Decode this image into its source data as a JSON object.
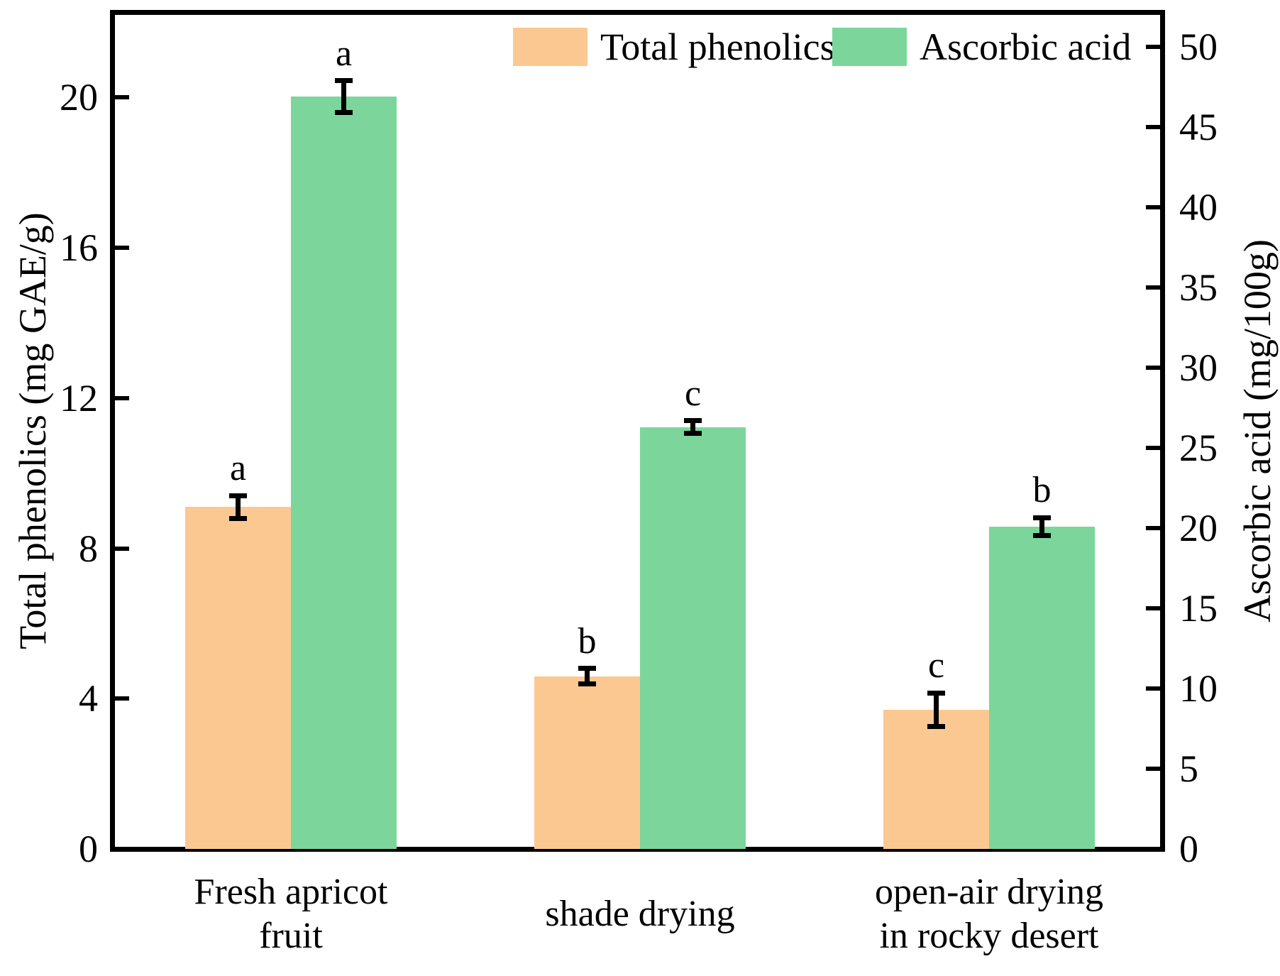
{
  "figure": {
    "background": "#FFFFFF",
    "axis_color": "#000000"
  },
  "chart_data": {
    "type": "bar",
    "title": "",
    "grid": false,
    "error_bars": true,
    "categories": [
      [
        "Fresh apricot",
        "fruit"
      ],
      [
        "shade drying"
      ],
      [
        "open-air drying",
        "in rocky desert"
      ]
    ],
    "series": [
      {
        "name": "Total phenolics",
        "axis": "left",
        "color": "#FCC892",
        "values": [
          9.1,
          4.6,
          3.7
        ],
        "errors": [
          0.3,
          0.2,
          0.45
        ],
        "sig_letters": [
          "a",
          "b",
          "c"
        ]
      },
      {
        "name": "Ascorbic acid",
        "axis": "right",
        "color": "#7CD69B",
        "values": [
          46.9,
          26.3,
          20.1
        ],
        "errors": [
          1.0,
          0.4,
          0.55
        ],
        "sig_letters": [
          "a",
          "c",
          "b"
        ]
      }
    ],
    "left_axis": {
      "label": "Total phenolics (mg GAE/g)",
      "ticks": [
        0,
        4,
        8,
        12,
        16,
        20
      ],
      "range": [
        0,
        22.2
      ]
    },
    "right_axis": {
      "label": "Ascorbic acid (mg/100g)",
      "ticks": [
        0,
        5,
        10,
        15,
        20,
        25,
        30,
        35,
        40,
        45,
        50
      ],
      "range": [
        0,
        52.0
      ]
    },
    "legend": {
      "position": "top-center"
    }
  }
}
